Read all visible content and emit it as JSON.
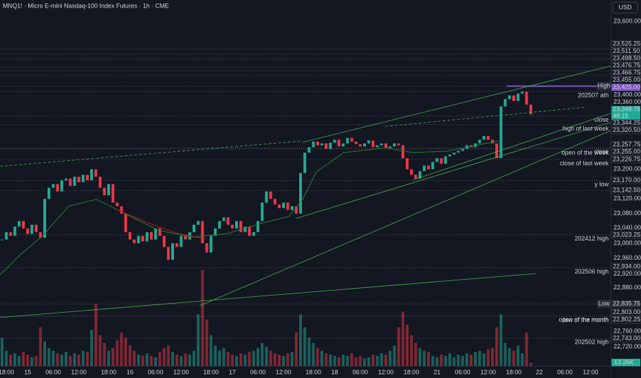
{
  "header": {
    "symbol_line": "MNQ1! · Micro E-mini Nasdaq-100 Index Futures · 1h · CME",
    "currency": "USD"
  },
  "chart_data": {
    "type": "candlestick",
    "categories": [
      null,
      "18:00",
      null,
      null,
      null,
      null,
      "15",
      null,
      null,
      null,
      null,
      null,
      "06:00",
      null,
      null,
      null,
      null,
      null,
      "12:00",
      null,
      null,
      null,
      null,
      null,
      null,
      "18:00",
      null,
      null,
      null,
      null,
      "16",
      null,
      null,
      null,
      null,
      null,
      "06:00",
      null,
      null,
      null,
      null,
      null,
      "12:00",
      null,
      null,
      null,
      null,
      null,
      null,
      "18:00",
      null,
      null,
      null,
      null,
      "17",
      null,
      null,
      null,
      null,
      null,
      "06:00",
      null,
      null,
      null,
      null,
      null,
      "12:00",
      null,
      null,
      null,
      null,
      null,
      null,
      "18:00",
      null,
      null,
      null,
      null,
      "18",
      null,
      null,
      null,
      null,
      null,
      "06:00",
      null,
      null,
      null,
      null,
      null,
      "12:00",
      null,
      null,
      null,
      null,
      null,
      "18:00",
      null,
      null,
      null,
      null,
      null,
      "21",
      null,
      null,
      null,
      null,
      null,
      "06:00",
      null,
      null,
      null,
      null,
      null,
      "12:00",
      null,
      null,
      null,
      null,
      null,
      "18:00",
      null,
      null,
      null,
      null,
      null,
      "22",
      null,
      null,
      null,
      null,
      null,
      "06:00",
      null,
      null,
      null,
      null,
      null,
      "12:00"
    ],
    "close": [
      23010,
      23030,
      23020,
      23045,
      23060,
      23040,
      23025,
      23050,
      23030,
      23015,
      23120,
      23150,
      23160,
      23140,
      23170,
      23175,
      23155,
      23180,
      23165,
      23185,
      23170,
      23200,
      23180,
      23150,
      23130,
      23160,
      23110,
      23100,
      23080,
      23030,
      23010,
      23000,
      23020,
      23005,
      23030,
      23010,
      23040,
      23020,
      22990,
      22955,
      23000,
      22990,
      23020,
      23010,
      23030,
      23050,
      23060,
      23000,
      22975,
      23020,
      23040,
      23060,
      23070,
      23050,
      23040,
      23060,
      23030,
      23045,
      23020,
      23030,
      23060,
      23110,
      23140,
      23120,
      23105,
      23095,
      23110,
      23090,
      23100,
      23080,
      23190,
      23245,
      23260,
      23275,
      23265,
      23270,
      23255,
      23272,
      23280,
      23262,
      23270,
      23285,
      23275,
      23268,
      23262,
      23270,
      23278,
      23260,
      23265,
      23270,
      23258,
      23262,
      23270,
      23265,
      23230,
      23200,
      23185,
      23175,
      23195,
      23210,
      23200,
      23220,
      23230,
      23215,
      23235,
      23240,
      23245,
      23250,
      23255,
      23265,
      23260,
      23270,
      23280,
      23290,
      23280,
      23270,
      23230,
      23370,
      23390,
      23400,
      23385,
      23405,
      23410,
      23375,
      23348.75,
      null,
      null,
      null,
      null,
      null,
      null,
      null,
      null,
      null,
      null,
      null,
      null,
      null,
      null
    ],
    "volume": [
      110,
      60,
      45,
      50,
      40,
      55,
      45,
      35,
      40,
      150,
      95,
      70,
      60,
      50,
      45,
      55,
      40,
      50,
      45,
      60,
      55,
      140,
      240,
      120,
      90,
      60,
      70,
      100,
      130,
      110,
      80,
      60,
      45,
      40,
      50,
      40,
      35,
      55,
      70,
      80,
      55,
      45,
      40,
      50,
      45,
      60,
      200,
      370,
      180,
      120,
      80,
      60,
      70,
      55,
      45,
      40,
      50,
      45,
      55,
      60,
      70,
      90,
      75,
      60,
      50,
      45,
      40,
      50,
      55,
      130,
      200,
      150,
      110,
      90,
      70,
      60,
      50,
      45,
      40,
      35,
      45,
      40,
      50,
      35,
      40,
      30,
      35,
      45,
      40,
      50,
      45,
      60,
      80,
      150,
      210,
      160,
      120,
      90,
      70,
      60,
      55,
      40,
      35,
      45,
      40,
      50,
      35,
      45,
      40,
      50,
      45,
      55,
      60,
      50,
      65,
      70,
      150,
      200,
      90,
      70,
      60,
      80,
      50,
      130,
      13.26,
      null,
      null,
      null,
      null,
      null,
      null,
      null,
      null,
      null,
      null,
      null,
      null,
      null,
      null
    ],
    "volume_label": "13.26K",
    "up_color": "#22ab94",
    "down_color": "#f23645",
    "ylim": [
      22667,
      23658
    ],
    "yticks": [
      {
        "value": 23600,
        "label": "23,600.00"
      },
      {
        "value": 23400,
        "label": "23,400.00"
      },
      {
        "value": 23360,
        "label": "23,360.00"
      },
      {
        "value": 23200,
        "label": "23,200.00"
      },
      {
        "value": 23120,
        "label": "23,120.00"
      },
      {
        "value": 23080,
        "label": "23,080.00"
      },
      {
        "value": 23040,
        "label": "23,040.00"
      },
      {
        "value": 23000,
        "label": "23,000.00"
      },
      {
        "value": 22960,
        "label": "22,960.00"
      },
      {
        "value": 22920,
        "label": "22,920.00"
      },
      {
        "value": 22880,
        "label": "22,880.00"
      },
      {
        "value": 22760,
        "label": "22,760.00"
      },
      {
        "value": 22720,
        "label": "22,720.00"
      }
    ],
    "grid": false,
    "levels": [
      {
        "value": 23525.25,
        "price_label": "23,525.25"
      },
      {
        "value": 23511.5,
        "price_label": "23,511.50"
      },
      {
        "value": 23498.5,
        "price_label": "23,498.50"
      },
      {
        "value": 23476.75,
        "price_label": "23,476.75"
      },
      {
        "value": 23466.75,
        "price_label": "23,466.75"
      },
      {
        "value": 23455,
        "price_label": "23,455.00"
      },
      {
        "name": "High",
        "value": 23425,
        "price_label": "23,425.00",
        "boxed": true,
        "color": "#7e57c2"
      },
      {
        "name": "202507 ath",
        "value": 23410.5
      },
      {
        "name": "close",
        "value": 23344.25,
        "price_label": "23,344.25"
      },
      {
        "name": "high of last week",
        "value": 23320.5,
        "price_label": "23,320.50"
      },
      {
        "name": "close",
        "value": 23257.75,
        "price_label": "23,257.75"
      },
      {
        "name": "open of the week",
        "value": 23255,
        "price_label": "23,255.00"
      },
      {
        "name": "close of last week",
        "value": 23226.75,
        "price_label": "23,226.75"
      },
      {
        "name": "y low",
        "value": 23170,
        "price_label": "23,170.00"
      },
      {
        "value": 23142.5,
        "price_label": "23,142.50"
      },
      {
        "name": "202412 high",
        "value": 23023.25,
        "price_label": "23,023.25"
      },
      {
        "name": "202506 high",
        "value": 22934,
        "price_label": "22,934.00"
      },
      {
        "name": "Low",
        "value": 22835.75,
        "price_label": "22,835.75",
        "boxed": true
      },
      {
        "name": "open of the month",
        "value": 22803,
        "price_label": "22,803.00"
      },
      {
        "name": "low of the month",
        "value": 22802.25,
        "price_label": "22,802.25"
      },
      {
        "name": "202502 high",
        "value": 22743,
        "price_label": "22,743.00"
      }
    ],
    "last_price_label": "23,348.75",
    "countdown": "48:15"
  }
}
